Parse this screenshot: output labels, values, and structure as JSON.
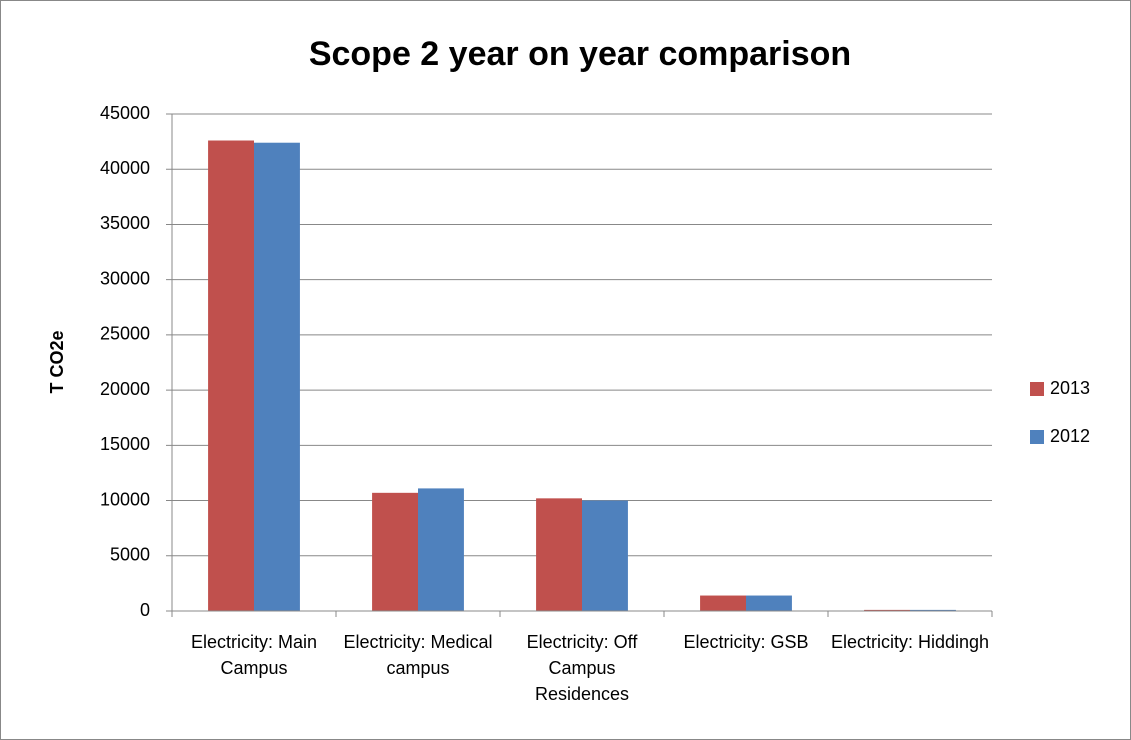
{
  "chart_data": {
    "type": "bar",
    "title": "Scope 2 year on year comparison",
    "y_label": "T CO2e",
    "categories": [
      "Electricity: Main Campus",
      "Electricity: Medical campus",
      "Electricity: Off Campus Residences",
      "Electricity: GSB",
      "Electricity: Hiddingh"
    ],
    "series": [
      {
        "name": "2013",
        "color": "#c0504d",
        "values": [
          42600,
          10700,
          10200,
          1400,
          100
        ]
      },
      {
        "name": "2012",
        "color": "#4f81bd",
        "values": [
          42400,
          11100,
          10000,
          1400,
          100
        ]
      }
    ],
    "ylim": [
      0,
      45000
    ],
    "yticks": [
      0,
      5000,
      10000,
      15000,
      20000,
      25000,
      30000,
      35000,
      40000,
      45000
    ],
    "grid": true,
    "legend": "right"
  }
}
